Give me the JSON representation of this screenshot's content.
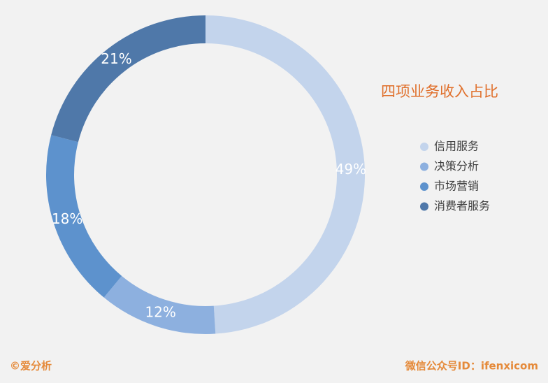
{
  "chart_data": {
    "type": "donut",
    "title": "四项业务收入占比",
    "categories": [
      "信用服务",
      "决策分析",
      "市场营销",
      "消费者服务"
    ],
    "values": [
      49,
      12,
      18,
      21
    ],
    "value_labels": [
      "49%",
      "12%",
      "18%",
      "21%"
    ],
    "colors": [
      "#c3d4ec",
      "#8db0df",
      "#5d92cd",
      "#4f78a9"
    ],
    "legend": "right",
    "annotations": [
      "©爱分析",
      "微信公众号ID：ifenxicom"
    ]
  }
}
